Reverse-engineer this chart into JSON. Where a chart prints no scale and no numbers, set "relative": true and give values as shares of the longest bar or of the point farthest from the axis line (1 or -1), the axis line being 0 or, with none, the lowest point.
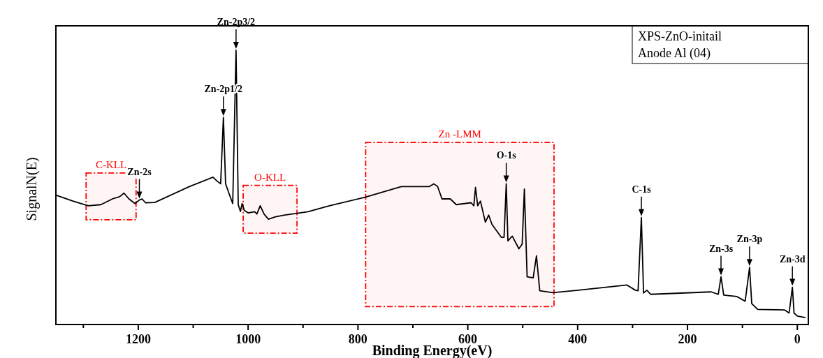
{
  "chart_data": {
    "type": "line",
    "relative": true,
    "xlabel": "Binding Energy(eV)",
    "ylabel": "SignalN(E)",
    "xlim": [
      1350,
      -20
    ],
    "xticks": [
      {
        "value": 1300,
        "label": null
      },
      1200,
      {
        "value": 1100,
        "label": null
      },
      1000,
      {
        "value": 900,
        "label": null
      },
      800,
      {
        "value": 700,
        "label": null
      },
      600,
      {
        "value": 500,
        "label": null
      },
      400,
      {
        "value": 300,
        "label": null
      },
      200,
      {
        "value": 100,
        "label": null
      },
      0
    ],
    "tick_labels": "x",
    "marker": "none",
    "line_style": "solid",
    "series": [
      {
        "color": "#000000",
        "x": [
          1349,
          1319,
          1291,
          1268,
          1247,
          1234,
          1226,
          1217,
          1206,
          1198,
          1193,
          1187,
          1170,
          1107,
          1064,
          1056,
          1050,
          1045,
          1041,
          1035,
          1028,
          1022,
          1018,
          1014,
          1011,
          1007,
          1000,
          988,
          984,
          978,
          971,
          963,
          950,
          933,
          891,
          852,
          787,
          721,
          704,
          670,
          662,
          655,
          647,
          632,
          621,
          594,
          589,
          586,
          582,
          577,
          568,
          562,
          556,
          539,
          534,
          530,
          527,
          519,
          507,
          501,
          497,
          492,
          481,
          475,
          469,
          445,
          399,
          310,
          295,
          290,
          284,
          280,
          274,
          267,
          157,
          144,
          139,
          134,
          110,
          95,
          87,
          83,
          72,
          23,
          15,
          9,
          6,
          0,
          -15
        ],
        "values": [
          0.471,
          0.45,
          0.433,
          0.437,
          0.458,
          0.466,
          0.479,
          0.458,
          0.441,
          0.454,
          0.458,
          0.444,
          0.445,
          0.503,
          0.537,
          0.522,
          0.513,
          0.755,
          0.513,
          0.479,
          0.441,
          1.0,
          0.437,
          0.412,
          0.441,
          0.416,
          0.407,
          0.411,
          0.403,
          0.433,
          0.403,
          0.384,
          0.393,
          0.399,
          0.411,
          0.433,
          0.464,
          0.503,
          0.503,
          0.503,
          0.513,
          0.503,
          0.458,
          0.458,
          0.437,
          0.444,
          0.433,
          0.5,
          0.433,
          0.45,
          0.373,
          0.399,
          0.365,
          0.318,
          0.318,
          0.513,
          0.305,
          0.322,
          0.276,
          0.293,
          0.494,
          0.174,
          0.17,
          0.25,
          0.123,
          0.116,
          0.125,
          0.144,
          0.125,
          0.123,
          0.39,
          0.115,
          0.125,
          0.11,
          0.119,
          0.11,
          0.174,
          0.107,
          0.102,
          0.085,
          0.208,
          0.076,
          0.055,
          0.053,
          0.042,
          0.136,
          0.042,
          0.031,
          0.025
        ]
      }
    ],
    "annotations": [
      {
        "text": "Zn-2p3/2",
        "x": 1022,
        "y": 1.0
      },
      {
        "text": "Zn-2p1/2",
        "x": 1045,
        "y": 0.755
      },
      {
        "text": "Zn-2s",
        "x": 1198,
        "y": 0.454
      },
      {
        "text": "O-1s",
        "x": 530,
        "y": 0.513
      },
      {
        "text": "C-1s",
        "x": 284,
        "y": 0.39
      },
      {
        "text": "Zn-3s",
        "x": 139,
        "y": 0.174
      },
      {
        "text": "Zn-3p",
        "x": 87,
        "y": 0.208
      },
      {
        "text": "Zn-3d",
        "x": 9,
        "y": 0.136
      },
      "XPS-ZnO-initail",
      "Anode Al (04)"
    ],
    "bands": [
      {
        "axis": "x",
        "from": 1295,
        "to": 1204,
        "label": "C-KLL",
        "color": "#ff0000"
      },
      {
        "axis": "x",
        "from": 1009,
        "to": 911,
        "label": "O-KLL",
        "color": "#ff0000"
      },
      {
        "axis": "x",
        "from": 786,
        "to": 443,
        "label": "Zn -LMM",
        "color": "#ff0000"
      }
    ]
  }
}
